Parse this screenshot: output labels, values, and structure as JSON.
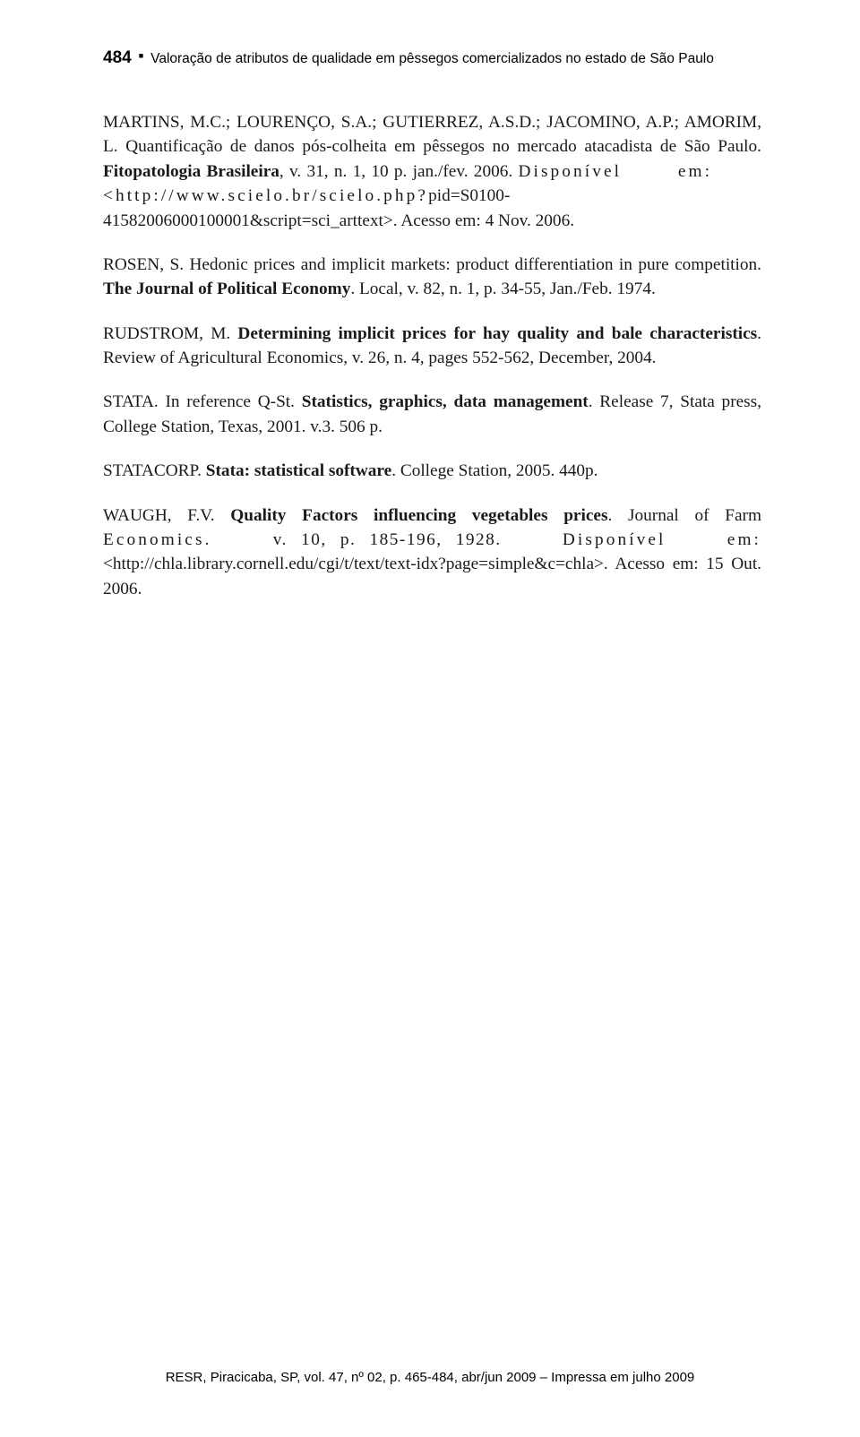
{
  "header": {
    "page_number": "484",
    "bullet": "■",
    "running_title": "Valoração de atributos de qualidade em pêssegos comercializados no estado de São Paulo"
  },
  "references": {
    "martins": {
      "authors": "MARTINS, M.C.; LOURENÇO, S.A.; GUTIERREZ, A.S.D.; JACOMINO, A.P.; AMORIM, L. Quantificação de danos pós-colheita em pêssegos no mercado atacadista de São Paulo. ",
      "journal": "Fitopatologia Brasileira",
      "rest1": ", v. 31, n. 1, 10 p. jan./fev. 2006. ",
      "disp_label": "Disponível",
      "em_label": "em:",
      "url": "<http://www.scielo.br/scielo.php?",
      "pid": "pid=S0100-41582006000100001&script=sci_arttext>. Acesso em: 4 Nov. 2006."
    },
    "rosen": {
      "author": "ROSEN, S. Hedonic prices and implicit markets: product differentiation in pure competition. ",
      "journal": "The Journal of Political Economy",
      "rest": ". Local, v. 82,  n. 1, p. 34-55, Jan./Feb. 1974."
    },
    "rudstrom": {
      "author": "RUDSTROM, M. ",
      "title": "Determining implicit prices for hay quality and bale characteristics",
      "rest": ". Review of Agricultural Economics, v. 26, n. 4, pages 552-562, December, 2004."
    },
    "stata": {
      "author": "STATA. In reference Q-St. ",
      "title": "Statistics, graphics, data management",
      "rest": ". Release 7, Stata press, College Station, Texas, 2001. v.3. 506 p."
    },
    "statacorp": {
      "author": "STATACORP. ",
      "title": "Stata: statistical software",
      "rest": ". College Station, 2005. 440p."
    },
    "waugh": {
      "author": "WAUGH, F.V. ",
      "title": "Quality Factors influencing vegetables prices",
      "rest1": ". Journal of Farm ",
      "econ_label": "Economics.",
      "vol_line": "v.   10,   p.   185-196,   1928.",
      "disp_label": "Disponível",
      "em_label": "em:",
      "url": "<http://chla.library.cornell.edu/cgi/t/text/text-idx?page=simple&c=chla>. Acesso em: 15 Out. 2006."
    }
  },
  "footer": {
    "text": "RESR, Piracicaba, SP, vol. 47, nº 02, p. 465-484, abr/jun 2009 – Impressa em julho 2009"
  }
}
